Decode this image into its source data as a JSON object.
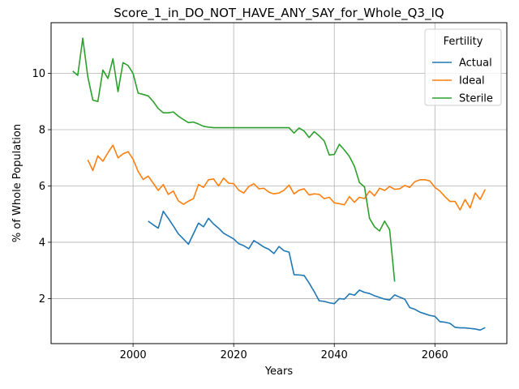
{
  "chart_data": {
    "type": "line",
    "title": "Score_1_in_DO_NOT_HAVE_ANY_SAY_for_Whole_Q3_IQ",
    "xlabel": "Years",
    "ylabel": "% of Whole Population",
    "xlim": [
      1983.7,
      2074.3
    ],
    "ylim": [
      0.4,
      11.8
    ],
    "xticks": [
      2000,
      2020,
      2040,
      2060
    ],
    "xtick_labels": [
      "2000",
      "2020",
      "2040",
      "2060"
    ],
    "yticks": [
      2,
      4,
      6,
      8,
      10
    ],
    "ytick_labels": [
      "2",
      "4",
      "6",
      "8",
      "10"
    ],
    "grid": true,
    "legend": {
      "title": "Fertility",
      "placement": "top-right"
    },
    "series": [
      {
        "name": "Actual",
        "color": "#1f77b4",
        "points": [
          [
            2003,
            4.75
          ],
          [
            2004,
            4.62
          ],
          [
            2005,
            4.5
          ],
          [
            2006,
            5.1
          ],
          [
            2007,
            4.85
          ],
          [
            2008,
            4.58
          ],
          [
            2009,
            4.3
          ],
          [
            2010,
            4.12
          ],
          [
            2011,
            3.93
          ],
          [
            2012,
            4.3
          ],
          [
            2013,
            4.68
          ],
          [
            2014,
            4.55
          ],
          [
            2015,
            4.85
          ],
          [
            2016,
            4.65
          ],
          [
            2017,
            4.5
          ],
          [
            2018,
            4.32
          ],
          [
            2019,
            4.22
          ],
          [
            2020,
            4.12
          ],
          [
            2021,
            3.95
          ],
          [
            2022,
            3.88
          ],
          [
            2023,
            3.77
          ],
          [
            2024,
            4.06
          ],
          [
            2025,
            3.95
          ],
          [
            2026,
            3.83
          ],
          [
            2027,
            3.75
          ],
          [
            2028,
            3.6
          ],
          [
            2029,
            3.85
          ],
          [
            2030,
            3.7
          ],
          [
            2031,
            3.65
          ],
          [
            2032,
            2.85
          ],
          [
            2033,
            2.84
          ],
          [
            2034,
            2.82
          ],
          [
            2035,
            2.55
          ],
          [
            2036,
            2.25
          ],
          [
            2037,
            1.92
          ],
          [
            2038,
            1.9
          ],
          [
            2039,
            1.85
          ],
          [
            2040,
            1.82
          ],
          [
            2041,
            2.0
          ],
          [
            2042,
            1.98
          ],
          [
            2043,
            2.17
          ],
          [
            2044,
            2.12
          ],
          [
            2045,
            2.3
          ],
          [
            2046,
            2.22
          ],
          [
            2047,
            2.18
          ],
          [
            2048,
            2.1
          ],
          [
            2049,
            2.04
          ],
          [
            2050,
            1.98
          ],
          [
            2051,
            1.95
          ],
          [
            2052,
            2.13
          ],
          [
            2053,
            2.05
          ],
          [
            2054,
            1.98
          ],
          [
            2055,
            1.68
          ],
          [
            2056,
            1.62
          ],
          [
            2057,
            1.52
          ],
          [
            2058,
            1.46
          ],
          [
            2059,
            1.4
          ],
          [
            2060,
            1.37
          ],
          [
            2061,
            1.18
          ],
          [
            2062,
            1.16
          ],
          [
            2063,
            1.12
          ],
          [
            2064,
            0.98
          ],
          [
            2065,
            0.96
          ],
          [
            2066,
            0.96
          ],
          [
            2067,
            0.94
          ],
          [
            2068,
            0.92
          ],
          [
            2069,
            0.88
          ],
          [
            2070,
            0.97
          ]
        ]
      },
      {
        "name": "Ideal",
        "color": "#ff7f0e",
        "points": [
          [
            1991,
            6.93
          ],
          [
            1992,
            6.55
          ],
          [
            1993,
            7.07
          ],
          [
            1994,
            6.88
          ],
          [
            1995,
            7.18
          ],
          [
            1996,
            7.45
          ],
          [
            1997,
            7.0
          ],
          [
            1998,
            7.14
          ],
          [
            1999,
            7.22
          ],
          [
            2000,
            6.95
          ],
          [
            2001,
            6.52
          ],
          [
            2002,
            6.23
          ],
          [
            2003,
            6.35
          ],
          [
            2004,
            6.1
          ],
          [
            2005,
            5.84
          ],
          [
            2006,
            6.05
          ],
          [
            2007,
            5.7
          ],
          [
            2008,
            5.82
          ],
          [
            2009,
            5.47
          ],
          [
            2010,
            5.35
          ],
          [
            2011,
            5.46
          ],
          [
            2012,
            5.55
          ],
          [
            2013,
            6.05
          ],
          [
            2014,
            5.95
          ],
          [
            2015,
            6.22
          ],
          [
            2016,
            6.25
          ],
          [
            2017,
            6.0
          ],
          [
            2018,
            6.28
          ],
          [
            2019,
            6.1
          ],
          [
            2020,
            6.08
          ],
          [
            2021,
            5.85
          ],
          [
            2022,
            5.75
          ],
          [
            2023,
            5.98
          ],
          [
            2024,
            6.08
          ],
          [
            2025,
            5.9
          ],
          [
            2026,
            5.92
          ],
          [
            2027,
            5.78
          ],
          [
            2028,
            5.72
          ],
          [
            2029,
            5.75
          ],
          [
            2030,
            5.85
          ],
          [
            2031,
            6.03
          ],
          [
            2032,
            5.72
          ],
          [
            2033,
            5.85
          ],
          [
            2034,
            5.9
          ],
          [
            2035,
            5.68
          ],
          [
            2036,
            5.72
          ],
          [
            2037,
            5.7
          ],
          [
            2038,
            5.55
          ],
          [
            2039,
            5.6
          ],
          [
            2040,
            5.4
          ],
          [
            2041,
            5.37
          ],
          [
            2042,
            5.33
          ],
          [
            2043,
            5.62
          ],
          [
            2044,
            5.42
          ],
          [
            2045,
            5.6
          ],
          [
            2046,
            5.55
          ],
          [
            2047,
            5.82
          ],
          [
            2048,
            5.65
          ],
          [
            2049,
            5.92
          ],
          [
            2050,
            5.84
          ],
          [
            2051,
            5.98
          ],
          [
            2052,
            5.88
          ],
          [
            2053,
            5.9
          ],
          [
            2054,
            6.02
          ],
          [
            2055,
            5.95
          ],
          [
            2056,
            6.15
          ],
          [
            2057,
            6.22
          ],
          [
            2058,
            6.22
          ],
          [
            2059,
            6.18
          ],
          [
            2060,
            5.95
          ],
          [
            2061,
            5.82
          ],
          [
            2062,
            5.62
          ],
          [
            2063,
            5.45
          ],
          [
            2064,
            5.45
          ],
          [
            2065,
            5.15
          ],
          [
            2066,
            5.52
          ],
          [
            2067,
            5.22
          ],
          [
            2068,
            5.75
          ],
          [
            2069,
            5.52
          ],
          [
            2070,
            5.88
          ]
        ]
      },
      {
        "name": "Sterile",
        "color": "#2ca02c",
        "points": [
          [
            1988,
            10.08
          ],
          [
            1989,
            9.93
          ],
          [
            1990,
            11.25
          ],
          [
            1991,
            9.88
          ],
          [
            1992,
            9.05
          ],
          [
            1993,
            9.0
          ],
          [
            1994,
            10.12
          ],
          [
            1995,
            9.82
          ],
          [
            1996,
            10.52
          ],
          [
            1997,
            9.35
          ],
          [
            1998,
            10.38
          ],
          [
            1999,
            10.28
          ],
          [
            2000,
            10.0
          ],
          [
            2001,
            9.3
          ],
          [
            2002,
            9.25
          ],
          [
            2003,
            9.2
          ],
          [
            2004,
            9.0
          ],
          [
            2005,
            8.75
          ],
          [
            2006,
            8.6
          ],
          [
            2007,
            8.6
          ],
          [
            2008,
            8.63
          ],
          [
            2009,
            8.48
          ],
          [
            2010,
            8.36
          ],
          [
            2011,
            8.25
          ],
          [
            2012,
            8.27
          ],
          [
            2013,
            8.2
          ],
          [
            2014,
            8.12
          ],
          [
            2015,
            8.09
          ],
          [
            2016,
            8.07
          ],
          [
            2017,
            8.07
          ],
          [
            2018,
            8.07
          ],
          [
            2019,
            8.07
          ],
          [
            2020,
            8.07
          ],
          [
            2021,
            8.07
          ],
          [
            2022,
            8.07
          ],
          [
            2023,
            8.07
          ],
          [
            2024,
            8.07
          ],
          [
            2025,
            8.07
          ],
          [
            2026,
            8.07
          ],
          [
            2027,
            8.07
          ],
          [
            2028,
            8.07
          ],
          [
            2029,
            8.07
          ],
          [
            2030,
            8.07
          ],
          [
            2031,
            8.07
          ],
          [
            2032,
            7.88
          ],
          [
            2033,
            8.06
          ],
          [
            2034,
            7.95
          ],
          [
            2035,
            7.72
          ],
          [
            2036,
            7.93
          ],
          [
            2037,
            7.78
          ],
          [
            2038,
            7.6
          ],
          [
            2039,
            7.1
          ],
          [
            2040,
            7.12
          ],
          [
            2041,
            7.48
          ],
          [
            2042,
            7.28
          ],
          [
            2043,
            7.05
          ],
          [
            2044,
            6.7
          ],
          [
            2045,
            6.12
          ],
          [
            2046,
            5.97
          ],
          [
            2047,
            4.85
          ],
          [
            2048,
            4.55
          ],
          [
            2049,
            4.4
          ],
          [
            2050,
            4.75
          ],
          [
            2051,
            4.45
          ],
          [
            2052,
            2.6
          ]
        ]
      }
    ]
  }
}
